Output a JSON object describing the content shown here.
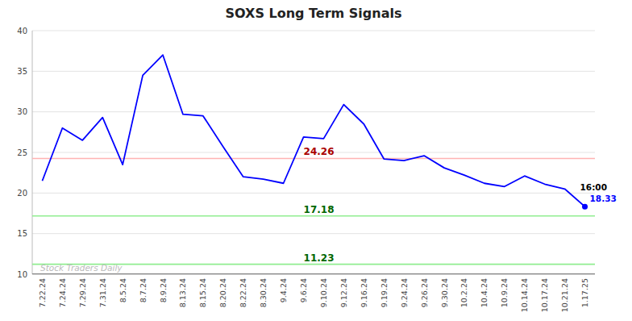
{
  "chart_data": {
    "type": "line",
    "title": "SOXS Long Term Signals",
    "categories": [
      "7.22.24",
      "7.24.24",
      "7.29.24",
      "7.31.24",
      "8.5.24",
      "8.7.24",
      "8.9.24",
      "8.13.24",
      "8.15.24",
      "8.20.24",
      "8.22.24",
      "8.30.24",
      "9.4.24",
      "9.6.24",
      "9.10.24",
      "9.12.24",
      "9.16.24",
      "9.19.24",
      "9.24.24",
      "9.26.24",
      "9.30.24",
      "10.2.24",
      "10.4.24",
      "10.9.24",
      "10.14.24",
      "10.17.24",
      "10.21.24",
      "1.17.25"
    ],
    "values": [
      21.5,
      28.0,
      26.5,
      29.3,
      23.5,
      34.5,
      37.0,
      29.7,
      29.5,
      25.7,
      22.0,
      21.7,
      21.2,
      26.9,
      26.7,
      30.9,
      28.5,
      24.2,
      24.0,
      24.6,
      23.1,
      22.2,
      21.2,
      20.8,
      22.1,
      21.1,
      20.5,
      18.33
    ],
    "color": "#0000FF",
    "ylim": [
      10,
      40
    ],
    "yticks": [
      10,
      15,
      20,
      25,
      30,
      35,
      40
    ],
    "grid": true,
    "reference_lines": [
      {
        "value": 24.26,
        "color": "#FFB3B3",
        "label": "24.26",
        "label_color": "#AA0000"
      },
      {
        "value": 17.18,
        "color": "#90EE90",
        "label": "17.18",
        "label_color": "#006600"
      },
      {
        "value": 11.23,
        "color": "#90EE90",
        "label": "11.23",
        "label_color": "#006600"
      },
      {
        "value": 10.0,
        "color": "#666666"
      }
    ],
    "annotations": [
      {
        "text": "16:00"
      },
      {
        "text": "18.33",
        "color": "#0000FF"
      },
      {
        "text": "Stock Traders Daily",
        "color": "#BBBBBB"
      }
    ]
  }
}
